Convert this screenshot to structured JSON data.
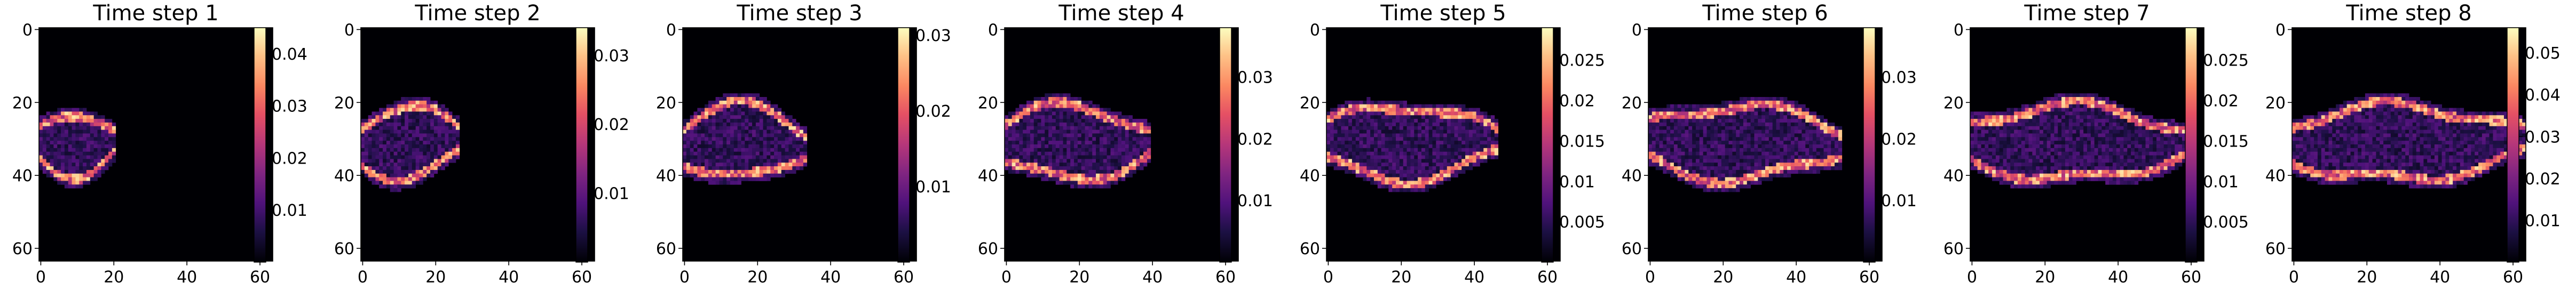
{
  "figure": {
    "panel_count": 8
  },
  "chart_data": [
    {
      "type": "heatmap",
      "title": "Time step 1",
      "colormap": "magma",
      "xlim": [
        0,
        63
      ],
      "ylim": [
        63,
        0
      ],
      "xticks": [
        "0",
        "20",
        "40",
        "60"
      ],
      "yticks": [
        "0",
        "20",
        "40",
        "60"
      ],
      "colorbar_ticks": [
        0.01,
        0.02,
        0.03,
        0.04
      ],
      "colorbar_range": [
        0.0,
        0.045
      ]
    },
    {
      "type": "heatmap",
      "title": "Time step 2",
      "colormap": "magma",
      "xlim": [
        0,
        63
      ],
      "ylim": [
        63,
        0
      ],
      "xticks": [
        "0",
        "20",
        "40",
        "60"
      ],
      "yticks": [
        "0",
        "20",
        "40",
        "60"
      ],
      "colorbar_ticks": [
        0.01,
        0.02,
        0.03
      ],
      "colorbar_range": [
        0.0,
        0.034
      ]
    },
    {
      "type": "heatmap",
      "title": "Time step 3",
      "colormap": "magma",
      "xlim": [
        0,
        63
      ],
      "ylim": [
        63,
        0
      ],
      "xticks": [
        "0",
        "20",
        "40",
        "60"
      ],
      "yticks": [
        "0",
        "20",
        "40",
        "60"
      ],
      "colorbar_ticks": [
        0.01,
        0.02,
        0.03
      ],
      "colorbar_range": [
        0.0,
        0.031
      ]
    },
    {
      "type": "heatmap",
      "title": "Time step 4",
      "colormap": "magma",
      "xlim": [
        0,
        63
      ],
      "ylim": [
        63,
        0
      ],
      "xticks": [
        "0",
        "20",
        "40",
        "60"
      ],
      "yticks": [
        "0",
        "20",
        "40",
        "60"
      ],
      "colorbar_ticks": [
        0.01,
        0.02,
        0.03
      ],
      "colorbar_range": [
        0.0,
        0.038
      ]
    },
    {
      "type": "heatmap",
      "title": "Time step 5",
      "colormap": "magma",
      "xlim": [
        0,
        63
      ],
      "ylim": [
        63,
        0
      ],
      "xticks": [
        "0",
        "20",
        "40",
        "60"
      ],
      "yticks": [
        "0",
        "20",
        "40",
        "60"
      ],
      "colorbar_ticks": [
        0.005,
        0.01,
        0.015,
        0.02,
        0.025
      ],
      "colorbar_range": [
        0.0,
        0.029
      ]
    },
    {
      "type": "heatmap",
      "title": "Time step 6",
      "colormap": "magma",
      "xlim": [
        0,
        63
      ],
      "ylim": [
        63,
        0
      ],
      "xticks": [
        "0",
        "20",
        "40",
        "60"
      ],
      "yticks": [
        "0",
        "20",
        "40",
        "60"
      ],
      "colorbar_ticks": [
        0.01,
        0.02,
        0.03
      ],
      "colorbar_range": [
        0.0,
        0.038
      ]
    },
    {
      "type": "heatmap",
      "title": "Time step 7",
      "colormap": "magma",
      "xlim": [
        0,
        63
      ],
      "ylim": [
        63,
        0
      ],
      "xticks": [
        "0",
        "20",
        "40",
        "60"
      ],
      "yticks": [
        "0",
        "20",
        "40",
        "60"
      ],
      "colorbar_ticks": [
        0.005,
        0.01,
        0.015,
        0.02,
        0.025
      ],
      "colorbar_range": [
        0.0,
        0.029
      ]
    },
    {
      "type": "heatmap",
      "title": "Time step 8",
      "colormap": "magma",
      "xlim": [
        0,
        63
      ],
      "ylim": [
        63,
        0
      ],
      "xticks": [
        "0",
        "20",
        "40",
        "60"
      ],
      "yticks": [
        "0",
        "20",
        "40",
        "60"
      ],
      "colorbar_ticks": [
        0.01,
        0.02,
        0.03,
        0.04,
        0.05
      ],
      "colorbar_range": [
        0.0,
        0.056
      ]
    }
  ]
}
